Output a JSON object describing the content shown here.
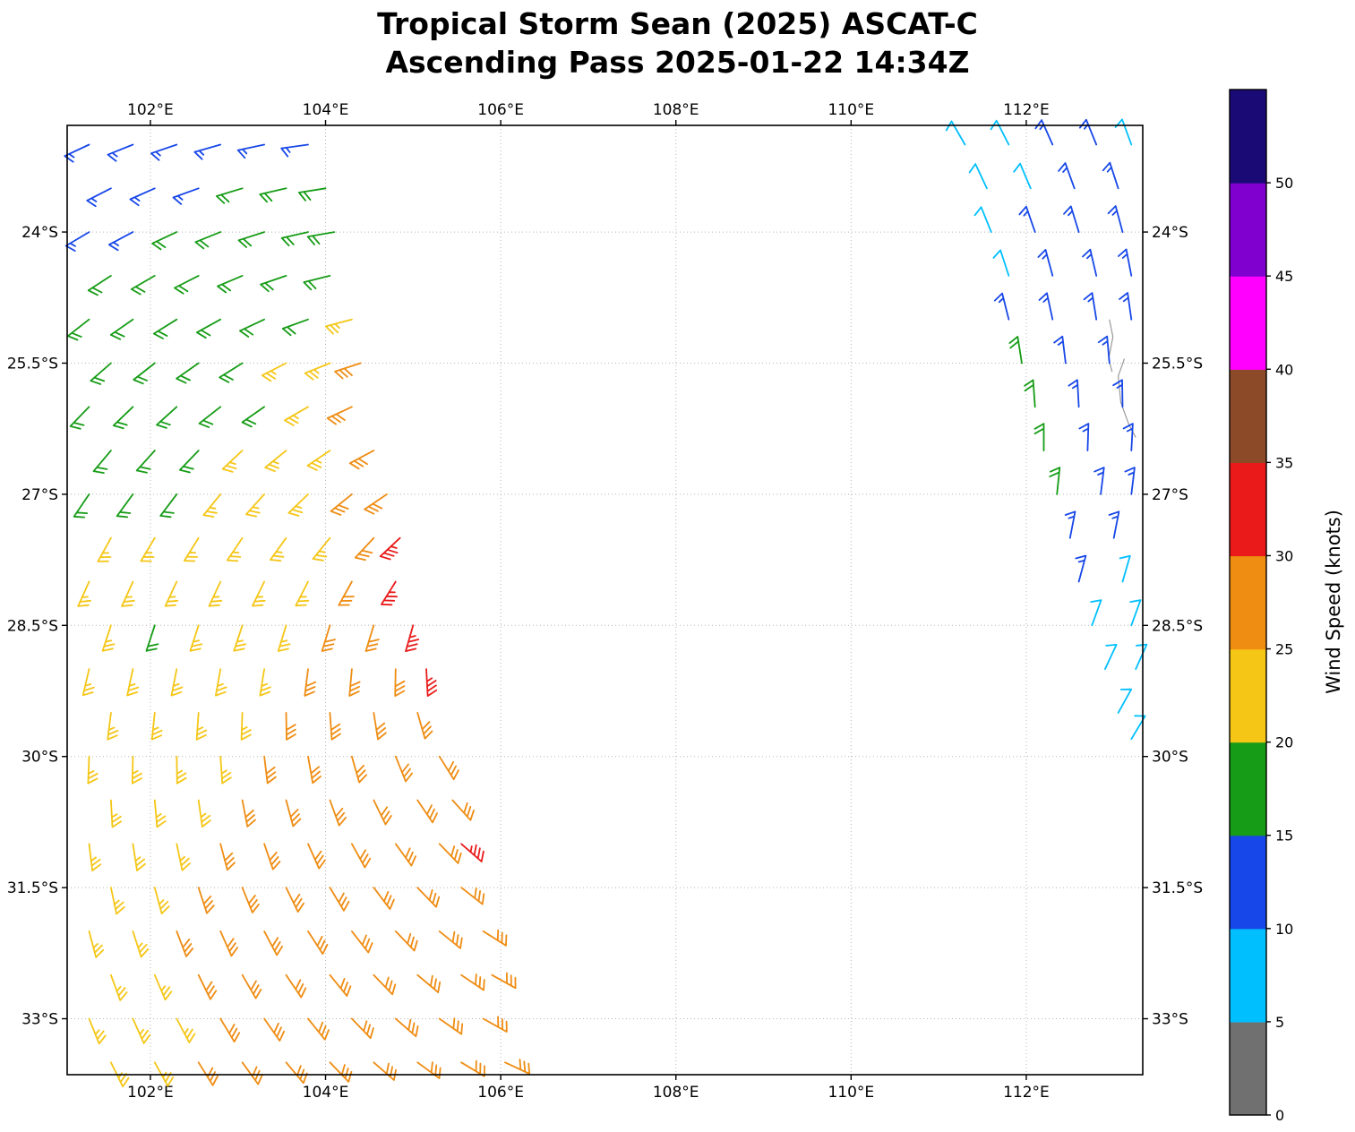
{
  "title": {
    "line1": "Tropical Storm Sean (2025) ASCAT-C",
    "line2": "Ascending Pass 2025-01-22 14:34Z"
  },
  "map": {
    "lon_ticks": [
      {
        "lon": 102,
        "label": "102°E"
      },
      {
        "lon": 104,
        "label": "104°E"
      },
      {
        "lon": 106,
        "label": "106°E"
      },
      {
        "lon": 108,
        "label": "108°E"
      },
      {
        "lon": 110,
        "label": "110°E"
      },
      {
        "lon": 112,
        "label": "112°E"
      }
    ],
    "lat_ticks": [
      {
        "lat": -24,
        "label": "24°S"
      },
      {
        "lat": -25.5,
        "label": "25.5°S"
      },
      {
        "lat": -27,
        "label": "27°S"
      },
      {
        "lat": -28.5,
        "label": "28.5°S"
      },
      {
        "lat": -30,
        "label": "30°S"
      },
      {
        "lat": -31.5,
        "label": "31.5°S"
      },
      {
        "lat": -33,
        "label": "33°S"
      }
    ]
  },
  "colorbar": {
    "label": "Wind Speed (knots)",
    "tick_values": [
      0,
      5,
      10,
      15,
      20,
      25,
      30,
      35,
      40,
      45,
      50
    ],
    "levels": [
      0,
      5,
      10,
      15,
      20,
      25,
      30,
      35,
      40,
      45,
      50,
      55
    ],
    "colors": [
      "#707070",
      "#00bfff",
      "#1747e8",
      "#169c16",
      "#f5c616",
      "#ef8c12",
      "#ea1a1a",
      "#8d4a28",
      "#ff00ff",
      "#8000d0",
      "#1a0a75"
    ]
  },
  "chart_data": {
    "type": "wind_barb_map",
    "storm": "Tropical Storm Sean (2025)",
    "satellite": "ASCAT-C",
    "pass": "Ascending",
    "datetime": "2025-01-22 14:34Z",
    "units": "knots",
    "extent": {
      "lon_min": 101.05,
      "lon_max": 113.33,
      "lat_min": -33.64,
      "lat_max": -22.78
    },
    "barb_format": "[lon_deg_east, lat_deg_north, wind_speed_knots, wind_from_direction_deg]",
    "barbs": [
      [
        101.3,
        -23,
        13,
        245
      ],
      [
        101.8,
        -23,
        13,
        248
      ],
      [
        102.3,
        -23,
        13,
        251
      ],
      [
        102.8,
        -23,
        13,
        254
      ],
      [
        103.3,
        -23,
        13,
        258
      ],
      [
        103.8,
        -23,
        13,
        262
      ],
      [
        101.55,
        -23.5,
        13,
        243
      ],
      [
        102.05,
        -23.5,
        13,
        246
      ],
      [
        102.55,
        -23.5,
        13,
        250
      ],
      [
        103.05,
        -23.5,
        18,
        253
      ],
      [
        103.55,
        -23.5,
        18,
        257
      ],
      [
        104,
        -23.5,
        18,
        261
      ],
      [
        101.3,
        -24,
        13,
        239
      ],
      [
        101.8,
        -24,
        13,
        242
      ],
      [
        102.3,
        -24,
        18,
        245
      ],
      [
        102.8,
        -24,
        18,
        248
      ],
      [
        103.3,
        -24,
        18,
        252
      ],
      [
        103.8,
        -24,
        18,
        257
      ],
      [
        104.1,
        -24,
        18,
        260
      ],
      [
        101.55,
        -24.5,
        18,
        237
      ],
      [
        102.05,
        -24.5,
        18,
        240
      ],
      [
        102.55,
        -24.5,
        18,
        243
      ],
      [
        103.05,
        -24.5,
        18,
        247
      ],
      [
        103.55,
        -24.5,
        18,
        251
      ],
      [
        104.05,
        -24.5,
        18,
        256
      ],
      [
        101.3,
        -25,
        18,
        232
      ],
      [
        101.8,
        -25,
        18,
        235
      ],
      [
        102.3,
        -25,
        18,
        238
      ],
      [
        102.8,
        -25,
        18,
        241
      ],
      [
        103.3,
        -25,
        18,
        245
      ],
      [
        103.8,
        -25,
        18,
        250
      ],
      [
        104.3,
        -25,
        23,
        255
      ],
      [
        101.55,
        -25.5,
        18,
        229
      ],
      [
        102.05,
        -25.5,
        18,
        232
      ],
      [
        102.55,
        -25.5,
        18,
        235
      ],
      [
        103.05,
        -25.5,
        18,
        238
      ],
      [
        103.55,
        -25.5,
        23,
        243
      ],
      [
        104.05,
        -25.5,
        23,
        248
      ],
      [
        104.4,
        -25.5,
        28,
        252
      ],
      [
        101.3,
        -26,
        18,
        224
      ],
      [
        101.8,
        -26,
        18,
        226
      ],
      [
        102.3,
        -26,
        18,
        228
      ],
      [
        102.8,
        -26,
        18,
        232
      ],
      [
        103.3,
        -26,
        18,
        235
      ],
      [
        103.8,
        -26,
        23,
        240
      ],
      [
        104.3,
        -26,
        28,
        245
      ],
      [
        101.55,
        -26.5,
        18,
        220
      ],
      [
        102.05,
        -26.5,
        18,
        222
      ],
      [
        102.55,
        -26.5,
        18,
        224
      ],
      [
        103.05,
        -26.5,
        23,
        227
      ],
      [
        103.55,
        -26.5,
        23,
        231
      ],
      [
        104.05,
        -26.5,
        23,
        236
      ],
      [
        104.55,
        -26.5,
        28,
        242
      ],
      [
        101.3,
        -27,
        18,
        214
      ],
      [
        101.8,
        -27,
        18,
        216
      ],
      [
        102.3,
        -27,
        18,
        217
      ],
      [
        102.8,
        -27,
        23,
        219
      ],
      [
        103.3,
        -27,
        23,
        222
      ],
      [
        103.8,
        -27,
        23,
        226
      ],
      [
        104.3,
        -27,
        28,
        231
      ],
      [
        104.7,
        -27,
        28,
        236
      ],
      [
        101.55,
        -27.5,
        23,
        209
      ],
      [
        102.05,
        -27.5,
        23,
        211
      ],
      [
        102.55,
        -27.5,
        23,
        212
      ],
      [
        103.05,
        -27.5,
        23,
        214
      ],
      [
        103.55,
        -27.5,
        23,
        216
      ],
      [
        104.05,
        -27.5,
        23,
        219
      ],
      [
        104.55,
        -27.5,
        28,
        223
      ],
      [
        104.85,
        -27.5,
        33,
        227
      ],
      [
        101.3,
        -28,
        23,
        204
      ],
      [
        101.8,
        -28,
        23,
        204
      ],
      [
        102.3,
        -28,
        23,
        205
      ],
      [
        102.8,
        -28,
        23,
        205
      ],
      [
        103.3,
        -28,
        23,
        206
      ],
      [
        103.8,
        -28,
        23,
        207
      ],
      [
        104.3,
        -28,
        28,
        209
      ],
      [
        104.8,
        -28,
        33,
        212
      ],
      [
        101.55,
        -28.5,
        23,
        198
      ],
      [
        102.05,
        -28.5,
        18,
        198
      ],
      [
        102.55,
        -28.5,
        23,
        198
      ],
      [
        103.05,
        -28.5,
        23,
        198
      ],
      [
        103.55,
        -28.5,
        23,
        197
      ],
      [
        104.05,
        -28.5,
        28,
        197
      ],
      [
        104.55,
        -28.5,
        28,
        197
      ],
      [
        105,
        -28.5,
        33,
        196
      ],
      [
        101.3,
        -29,
        23,
        193
      ],
      [
        101.8,
        -29,
        23,
        192
      ],
      [
        102.3,
        -29,
        23,
        191
      ],
      [
        102.8,
        -29,
        23,
        190
      ],
      [
        103.3,
        -29,
        23,
        189
      ],
      [
        103.8,
        -29,
        28,
        187
      ],
      [
        104.3,
        -29,
        28,
        185
      ],
      [
        104.8,
        -29,
        28,
        181
      ],
      [
        105.15,
        -29,
        33,
        177
      ],
      [
        101.55,
        -29.5,
        23,
        187
      ],
      [
        102.05,
        -29.5,
        23,
        186
      ],
      [
        102.55,
        -29.5,
        23,
        184
      ],
      [
        103.05,
        -29.5,
        23,
        182
      ],
      [
        103.55,
        -29.5,
        28,
        179
      ],
      [
        104.05,
        -29.5,
        28,
        176
      ],
      [
        104.55,
        -29.5,
        28,
        171
      ],
      [
        105.05,
        -29.5,
        28,
        164
      ],
      [
        101.3,
        -30,
        23,
        182
      ],
      [
        101.8,
        -30,
        23,
        181
      ],
      [
        102.3,
        -30,
        23,
        179
      ],
      [
        102.8,
        -30,
        23,
        176
      ],
      [
        103.3,
        -30,
        28,
        173
      ],
      [
        103.8,
        -30,
        28,
        170
      ],
      [
        104.3,
        -30,
        28,
        164
      ],
      [
        104.8,
        -30,
        28,
        158
      ],
      [
        105.3,
        -30,
        28,
        148
      ],
      [
        101.55,
        -30.5,
        23,
        177
      ],
      [
        102.05,
        -30.5,
        23,
        175
      ],
      [
        102.55,
        -30.5,
        23,
        172
      ],
      [
        103.05,
        -30.5,
        28,
        169
      ],
      [
        103.55,
        -30.5,
        28,
        165
      ],
      [
        104.05,
        -30.5,
        28,
        160
      ],
      [
        104.55,
        -30.5,
        28,
        154
      ],
      [
        105.05,
        -30.5,
        28,
        146
      ],
      [
        105.45,
        -30.5,
        28,
        138
      ],
      [
        101.3,
        -31,
        23,
        173
      ],
      [
        101.8,
        -31,
        23,
        171
      ],
      [
        102.3,
        -31,
        23,
        168
      ],
      [
        102.8,
        -31,
        28,
        165
      ],
      [
        103.3,
        -31,
        28,
        161
      ],
      [
        103.8,
        -31,
        28,
        156
      ],
      [
        104.3,
        -31,
        28,
        151
      ],
      [
        104.8,
        -31,
        28,
        144
      ],
      [
        105.3,
        -31,
        28,
        136
      ],
      [
        105.55,
        -31,
        33,
        131
      ],
      [
        101.55,
        -31.5,
        23,
        168
      ],
      [
        102.05,
        -31.5,
        23,
        165
      ],
      [
        102.55,
        -31.5,
        28,
        162
      ],
      [
        103.05,
        -31.5,
        28,
        158
      ],
      [
        103.55,
        -31.5,
        28,
        154
      ],
      [
        104.05,
        -31.5,
        28,
        149
      ],
      [
        104.55,
        -31.5,
        28,
        143
      ],
      [
        105.05,
        -31.5,
        28,
        136
      ],
      [
        105.55,
        -31.5,
        28,
        128
      ],
      [
        101.3,
        -32,
        23,
        165
      ],
      [
        101.8,
        -32,
        23,
        162
      ],
      [
        102.3,
        -32,
        28,
        159
      ],
      [
        102.8,
        -32,
        28,
        156
      ],
      [
        103.3,
        -32,
        28,
        152
      ],
      [
        103.8,
        -32,
        28,
        147
      ],
      [
        104.3,
        -32,
        28,
        142
      ],
      [
        104.8,
        -32,
        28,
        136
      ],
      [
        105.3,
        -32,
        28,
        129
      ],
      [
        105.8,
        -32,
        28,
        122
      ],
      [
        101.55,
        -32.5,
        23,
        160
      ],
      [
        102.05,
        -32.5,
        23,
        157
      ],
      [
        102.55,
        -32.5,
        28,
        154
      ],
      [
        103.05,
        -32.5,
        28,
        150
      ],
      [
        103.55,
        -32.5,
        28,
        146
      ],
      [
        104.05,
        -32.5,
        28,
        141
      ],
      [
        104.55,
        -32.5,
        28,
        136
      ],
      [
        105.05,
        -32.5,
        28,
        130
      ],
      [
        105.55,
        -32.5,
        28,
        124
      ],
      [
        105.9,
        -32.5,
        28,
        119
      ],
      [
        101.3,
        -33,
        23,
        158
      ],
      [
        101.8,
        -33,
        23,
        156
      ],
      [
        102.3,
        -33,
        23,
        152
      ],
      [
        102.8,
        -33,
        28,
        149
      ],
      [
        103.3,
        -33,
        28,
        145
      ],
      [
        103.8,
        -33,
        28,
        141
      ],
      [
        104.3,
        -33,
        28,
        136
      ],
      [
        104.8,
        -33,
        28,
        131
      ],
      [
        105.3,
        -33,
        28,
        125
      ],
      [
        105.8,
        -33,
        28,
        119
      ],
      [
        101.55,
        -33.5,
        23,
        154
      ],
      [
        102.05,
        -33.5,
        23,
        151
      ],
      [
        102.55,
        -33.5,
        28,
        148
      ],
      [
        103.05,
        -33.5,
        28,
        144
      ],
      [
        103.55,
        -33.5,
        28,
        140
      ],
      [
        104.05,
        -33.5,
        28,
        136
      ],
      [
        104.55,
        -33.5,
        28,
        131
      ],
      [
        105.05,
        -33.5,
        28,
        126
      ],
      [
        105.55,
        -33.5,
        28,
        121
      ],
      [
        106.05,
        -33.5,
        28,
        115
      ],
      [
        111.3,
        -23,
        8,
        330
      ],
      [
        111.8,
        -23,
        8,
        333
      ],
      [
        112.3,
        -23,
        13,
        336
      ],
      [
        112.8,
        -23,
        13,
        338
      ],
      [
        113.2,
        -23,
        8,
        340
      ],
      [
        111.55,
        -23.5,
        8,
        335
      ],
      [
        112.05,
        -23.5,
        8,
        337
      ],
      [
        112.55,
        -23.5,
        13,
        340
      ],
      [
        113.05,
        -23.5,
        13,
        342
      ],
      [
        111.6,
        -24,
        8,
        338
      ],
      [
        112.1,
        -24,
        13,
        341
      ],
      [
        112.6,
        -24,
        13,
        343
      ],
      [
        113.1,
        -24,
        13,
        345
      ],
      [
        111.8,
        -24.5,
        8,
        342
      ],
      [
        112.3,
        -24.5,
        13,
        345
      ],
      [
        112.8,
        -24.5,
        13,
        347
      ],
      [
        113.2,
        -24.5,
        13,
        349
      ],
      [
        111.8,
        -25,
        13,
        346
      ],
      [
        112.3,
        -25,
        13,
        348
      ],
      [
        112.8,
        -25,
        13,
        351
      ],
      [
        113.2,
        -25,
        13,
        352
      ],
      [
        111.95,
        -25.5,
        18,
        351
      ],
      [
        112.45,
        -25.5,
        13,
        353
      ],
      [
        112.95,
        -25.5,
        13,
        355
      ],
      [
        112.1,
        -26,
        18,
        356
      ],
      [
        112.6,
        -26,
        13,
        357
      ],
      [
        113.1,
        -26,
        13,
        359
      ],
      [
        112.2,
        -26.5,
        18,
        0
      ],
      [
        112.7,
        -26.5,
        13,
        2
      ],
      [
        113.2,
        -26.5,
        13,
        3
      ],
      [
        112.35,
        -27,
        18,
        6
      ],
      [
        112.85,
        -27,
        13,
        7
      ],
      [
        113.2,
        -27,
        13,
        7
      ],
      [
        112.5,
        -27.5,
        13,
        11
      ],
      [
        113,
        -27.5,
        13,
        11
      ],
      [
        112.6,
        -28,
        13,
        15
      ],
      [
        113.1,
        -28,
        8,
        16
      ],
      [
        112.75,
        -28.5,
        8,
        20
      ],
      [
        113.2,
        -28.5,
        8,
        20
      ],
      [
        112.9,
        -29,
        8,
        25
      ],
      [
        113.25,
        -29,
        8,
        24
      ],
      [
        113.05,
        -29.5,
        8,
        29
      ],
      [
        113.2,
        -29.8,
        8,
        31
      ]
    ],
    "coastline": [
      [
        [
          112.95,
          -25.0
        ],
        [
          112.99,
          -25.2
        ],
        [
          112.94,
          -25.45
        ],
        [
          112.98,
          -25.6
        ]
      ],
      [
        [
          113.12,
          -25.45
        ],
        [
          113.05,
          -25.65
        ],
        [
          113.08,
          -25.95
        ],
        [
          113.17,
          -26.2
        ],
        [
          113.25,
          -26.35
        ]
      ]
    ]
  }
}
